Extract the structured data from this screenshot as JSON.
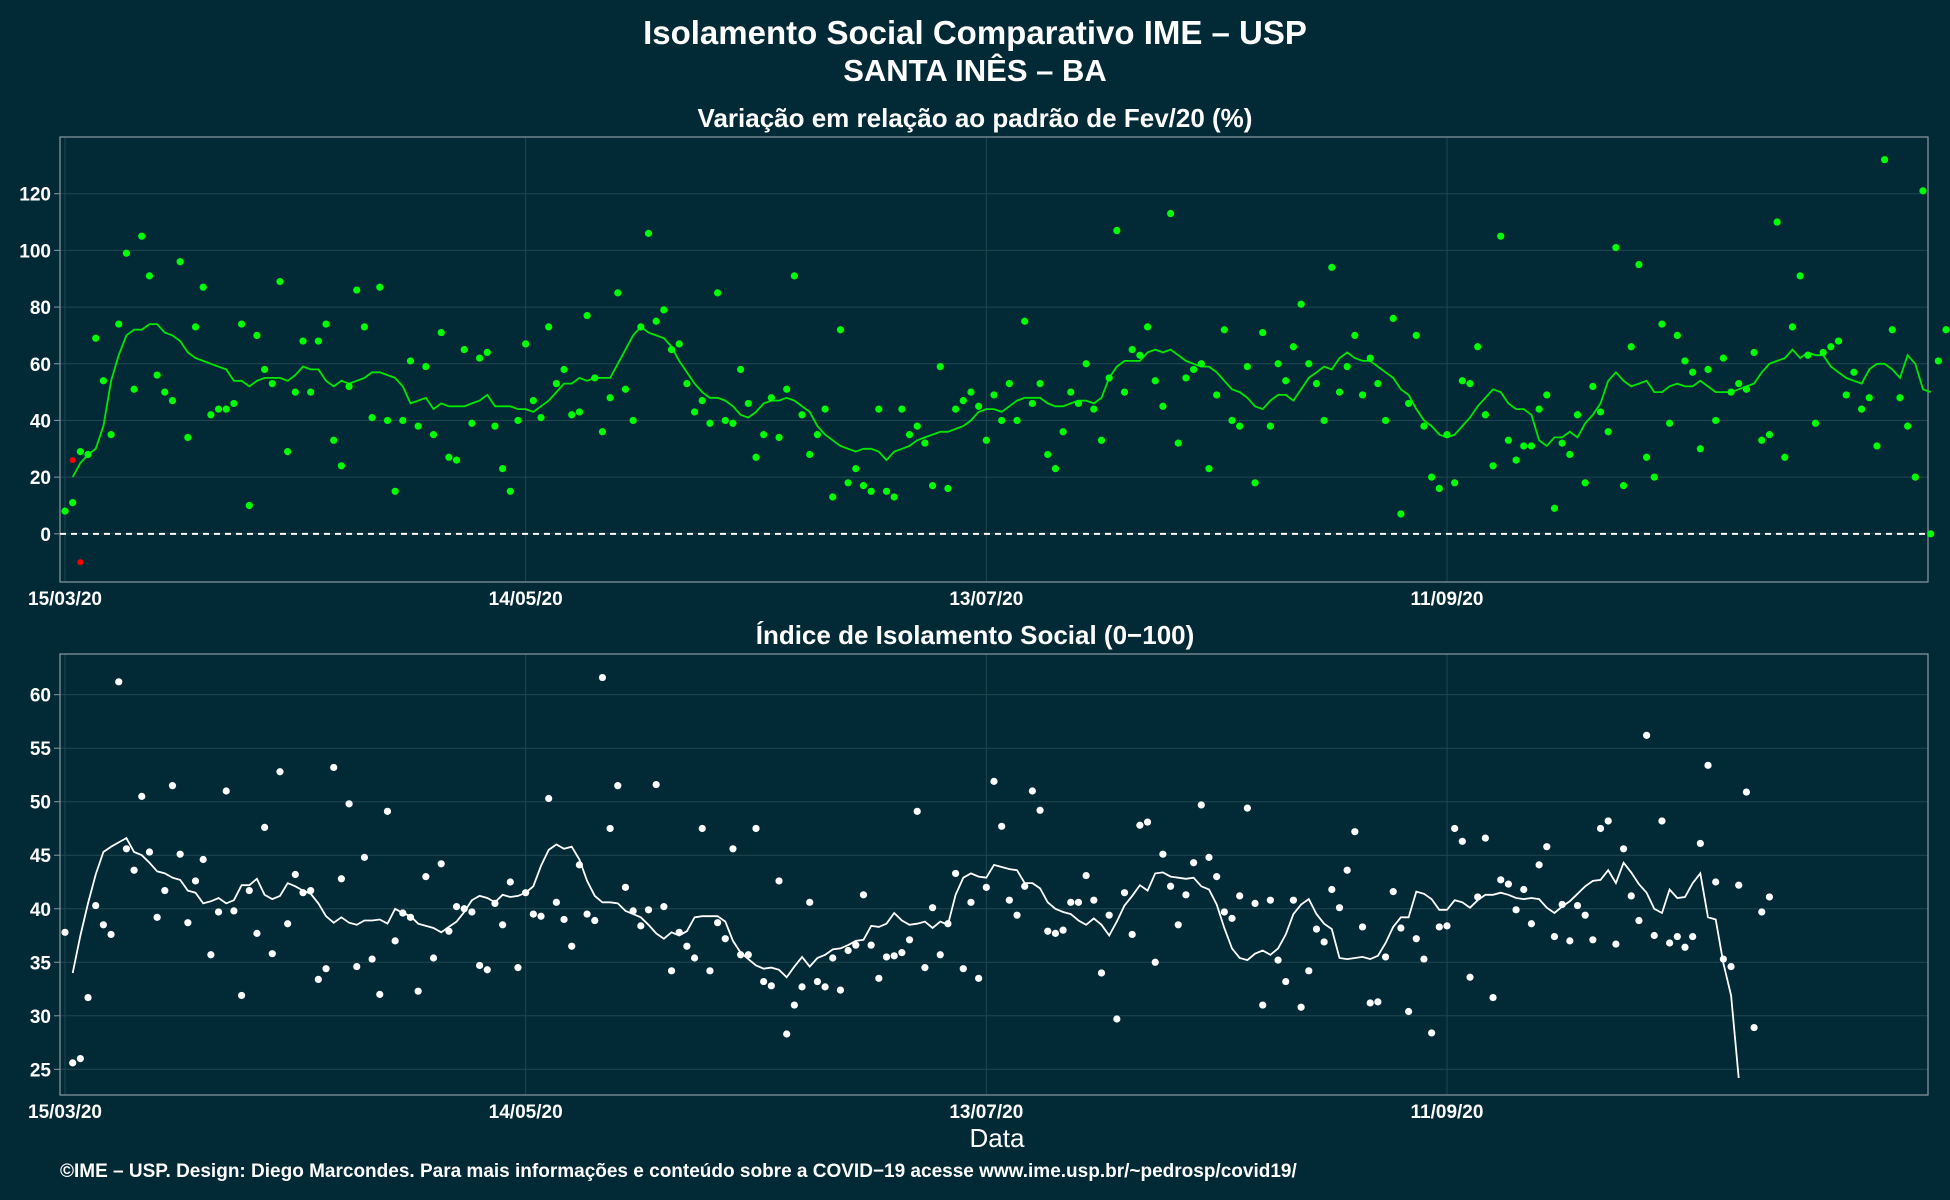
{
  "header": {
    "title": "Isolamento Social Comparativo IME – USP",
    "subtitle": "SANTA INÊS – BA"
  },
  "xlabel": "Data",
  "footer": "©IME – USP. Design: Diego Marcondes. Para mais informações e conteúdo sobre a COVID−19 acesse www.ime.usp.br/~pedrosp/covid19/",
  "colors": {
    "background": "#022a36",
    "top_points": "#00ff00",
    "top_line": "#00e600",
    "negative_points": "#ff0000",
    "bottom_points": "#ffffff",
    "bottom_line": "#ffffff",
    "zero_line": "#ffffff",
    "grid": "#1f4752",
    "frame": "#8a9aa0"
  },
  "chart_data": [
    {
      "type": "scatter",
      "title": "Variação em relação ao padrão de Fev/20 (%)",
      "xlabel": "",
      "ylabel": "",
      "x_axis": {
        "start": "15/03/20",
        "end": "12/11/20",
        "ticks": [
          "15/03/20",
          "14/05/20",
          "13/07/20",
          "11/09/20"
        ]
      },
      "ylim": [
        -17,
        140
      ],
      "yticks": [
        0,
        20,
        40,
        60,
        80,
        100,
        120
      ],
      "reference_line": 0,
      "grid": true,
      "series": [
        {
          "role": "points",
          "values": [
            8,
            11,
            29,
            28,
            69,
            54,
            35,
            74,
            99,
            51,
            105,
            91,
            56,
            50,
            47,
            96,
            34,
            73,
            87,
            42,
            44,
            44,
            46,
            74,
            10,
            70,
            58,
            53,
            89,
            29,
            50,
            68,
            50,
            68,
            74,
            33,
            24,
            52,
            86,
            73,
            41,
            87,
            40,
            15,
            40,
            61,
            38,
            59,
            35,
            71,
            27,
            26,
            65,
            39,
            62,
            64,
            38,
            23,
            15,
            40,
            67,
            47,
            41,
            73,
            53,
            58,
            42,
            43,
            77,
            55,
            36,
            48,
            85,
            51,
            40,
            73,
            106,
            75,
            79,
            65,
            67,
            53,
            43,
            47,
            39,
            85,
            40,
            39,
            58,
            46,
            27,
            35,
            48,
            34,
            51,
            91,
            42,
            28,
            35,
            44,
            13,
            72,
            18,
            23,
            17,
            15,
            44,
            15,
            13,
            44,
            35,
            38,
            32,
            17,
            59,
            16,
            44,
            47,
            50,
            45,
            33,
            49,
            40,
            53,
            40,
            75,
            46,
            53,
            28,
            23,
            36,
            50,
            46,
            60,
            44,
            33,
            55,
            107,
            50,
            65,
            63,
            73,
            54,
            45,
            113,
            32,
            55,
            58,
            60,
            23,
            49,
            72,
            40,
            38,
            59,
            18,
            71,
            38,
            60,
            54,
            66,
            81,
            60,
            53,
            40,
            94,
            50,
            59,
            70,
            49,
            62,
            53,
            40,
            76,
            7,
            46,
            70,
            38,
            20,
            16,
            35,
            18,
            54,
            53,
            66,
            42,
            24,
            105,
            33,
            26,
            31,
            31,
            44,
            49,
            9,
            32,
            28,
            42,
            18,
            52,
            43,
            36,
            101,
            17,
            66,
            95,
            27,
            20,
            74,
            39,
            70,
            61,
            57,
            30,
            58,
            40,
            62,
            50,
            53,
            51,
            64,
            33,
            35,
            110,
            27,
            73,
            91,
            63,
            39,
            64,
            66,
            68,
            49,
            57,
            44,
            48,
            31,
            132,
            72,
            48,
            38,
            20,
            121,
            0,
            61,
            72
          ]
        },
        {
          "role": "moving-average line",
          "values": [
            20,
            25,
            28,
            30,
            38,
            54,
            63,
            70,
            72,
            72,
            74,
            74,
            71,
            70,
            68,
            64,
            62,
            61,
            60,
            59,
            58,
            54,
            54,
            52,
            54,
            55,
            55,
            55,
            54,
            56,
            59,
            58,
            58,
            54,
            52,
            54,
            53,
            54,
            55,
            57,
            57,
            56,
            55,
            52,
            46,
            47,
            48,
            44,
            46,
            45,
            45,
            45,
            46,
            47,
            49,
            45,
            45,
            45,
            44,
            44,
            43,
            45,
            47,
            50,
            53,
            53,
            55,
            54,
            55,
            55,
            55,
            60,
            65,
            70,
            73,
            71,
            70,
            69,
            66,
            61,
            57,
            53,
            50,
            48,
            48,
            47,
            45,
            42,
            41,
            43,
            46,
            47,
            47,
            48,
            47,
            45,
            43,
            38,
            35,
            33,
            31,
            30,
            29,
            30,
            30,
            29,
            26,
            29,
            30,
            31,
            33,
            34,
            35,
            36,
            36,
            37,
            38,
            40,
            43,
            44,
            44,
            43,
            45,
            47,
            48,
            48,
            48,
            46,
            45,
            45,
            46,
            47,
            47,
            46,
            48,
            55,
            59,
            61,
            61,
            61,
            64,
            65,
            64,
            65,
            63,
            61,
            60,
            59,
            59,
            57,
            54,
            51,
            50,
            48,
            45,
            44,
            47,
            49,
            49,
            47,
            51,
            55,
            57,
            59,
            58,
            62,
            64,
            62,
            61,
            61,
            59,
            57,
            55,
            51,
            49,
            44,
            40,
            38,
            35,
            34,
            35,
            38,
            41,
            45,
            48,
            51,
            50,
            46,
            44,
            44,
            42,
            33,
            31,
            34,
            34,
            36,
            34,
            39,
            42,
            46,
            54,
            57,
            54,
            52,
            53,
            54,
            50,
            50,
            52,
            53,
            52,
            52,
            54,
            52,
            50,
            50,
            50,
            51,
            52,
            53,
            57,
            60,
            61,
            62,
            65,
            62,
            64,
            63,
            63,
            59,
            57,
            55,
            54,
            53,
            58,
            60,
            60,
            58,
            55,
            63,
            60,
            51,
            50
          ]
        },
        {
          "role": "negative points",
          "values": [
            26,
            -10
          ]
        }
      ]
    },
    {
      "type": "scatter",
      "title": "Índice de Isolamento Social (0−100)",
      "xlabel": "Data",
      "ylabel": "",
      "x_axis": {
        "start": "15/03/20",
        "end": "12/11/20",
        "ticks": [
          "15/03/20",
          "14/05/20",
          "13/07/20",
          "11/09/20"
        ]
      },
      "ylim": [
        22.6,
        63.8
      ],
      "yticks": [
        25,
        30,
        35,
        40,
        45,
        50,
        55,
        60
      ],
      "grid": true,
      "series": [
        {
          "role": "points",
          "values": [
            37.8,
            25.6,
            26,
            31.7,
            40.3,
            38.5,
            37.6,
            61.2,
            45.6,
            43.6,
            50.5,
            45.3,
            39.2,
            41.7,
            51.5,
            45.1,
            38.7,
            42.6,
            44.6,
            35.7,
            39.7,
            51,
            39.8,
            31.9,
            41.7,
            37.7,
            47.6,
            35.8,
            52.8,
            38.6,
            43.2,
            41.5,
            41.7,
            33.4,
            34.4,
            53.2,
            42.8,
            49.8,
            34.6,
            44.8,
            35.3,
            32,
            49.1,
            37,
            39.6,
            39.2,
            32.3,
            43,
            35.4,
            44.2,
            37.9,
            40.2,
            40,
            39.7,
            34.7,
            34.3,
            40.5,
            38.5,
            42.5,
            34.5,
            41.5,
            39.5,
            39.3,
            50.3,
            40.6,
            39,
            36.5,
            44.1,
            39.5,
            38.9,
            61.6,
            47.5,
            51.5,
            42,
            39.8,
            38.4,
            39.9,
            51.6,
            40.2,
            34.2,
            37.8,
            36.5,
            35.4,
            47.5,
            34.2,
            38.7,
            37.2,
            45.6,
            35.7,
            35.7,
            47.5,
            33.2,
            32.8,
            42.6,
            28.3,
            31,
            32.7,
            40.6,
            33.2,
            32.7,
            35.4,
            32.4,
            36.1,
            36.6,
            41.3,
            36.6,
            33.5,
            35.5,
            35.6,
            35.9,
            37.1,
            49.1,
            34.5,
            40.1,
            35.7,
            38.6,
            43.3,
            34.4,
            40.6,
            33.5,
            42,
            51.9,
            47.7,
            40.8,
            39.4,
            42.1,
            51,
            49.2,
            37.9,
            37.7,
            38,
            40.6,
            40.6,
            43.1,
            40.8,
            34,
            39.4,
            29.7,
            41.5,
            37.6,
            47.8,
            48.1,
            35,
            45.1,
            42.1,
            38.5,
            41.3,
            44.3,
            49.7,
            44.8,
            43,
            39.7,
            39.1,
            41.2,
            49.4,
            40.5,
            31,
            40.8,
            35.2,
            33.2,
            40.8,
            30.8,
            34.2,
            38.1,
            36.9,
            41.8,
            40.1,
            43.6,
            47.2,
            38.3,
            31.2,
            31.3,
            35.5,
            41.6,
            38.2,
            30.4,
            37.2,
            35.3,
            28.4,
            38.3,
            38.4,
            47.5,
            46.3,
            33.6,
            41.1,
            46.6,
            31.7,
            42.7,
            42.3,
            39.9,
            41.8,
            38.6,
            44.1,
            45.8,
            37.4,
            40.4,
            37,
            40.3,
            39.4,
            37.1,
            47.5,
            48.2,
            36.7,
            45.6,
            41.2,
            38.9,
            56.2,
            37.5,
            48.2,
            36.8,
            37.4,
            36.4,
            37.4,
            46.1,
            53.4,
            42.5,
            35.3,
            34.6,
            42.2,
            50.9,
            28.9,
            39.7,
            41.1
          ]
        },
        {
          "role": "moving-average line",
          "values": [
            34,
            37.5,
            40.5,
            43.2,
            45.3,
            45.8,
            46.2,
            46.6,
            45.3,
            45,
            44.3,
            43.5,
            43.3,
            42.9,
            42.7,
            41.7,
            41.5,
            40.5,
            40.7,
            41,
            40.5,
            40.8,
            42.2,
            42.2,
            42.8,
            41.3,
            40.9,
            41.2,
            42.4,
            42.1,
            41.7,
            41.4,
            40.5,
            39.3,
            38.7,
            39.2,
            38.7,
            38.5,
            38.9,
            38.9,
            39,
            38.6,
            40,
            39.6,
            39.3,
            38.6,
            38.4,
            38.2,
            37.8,
            38.3,
            38.8,
            39.7,
            40.8,
            41.2,
            41,
            40.6,
            41.3,
            41.1,
            41.2,
            41.5,
            42.1,
            44,
            45.5,
            46,
            45.6,
            45.8,
            44.6,
            42.6,
            41.2,
            40.6,
            40.6,
            40.5,
            39.8,
            39.5,
            39.2,
            38.5,
            37.7,
            37.2,
            37.8,
            37.5,
            37.9,
            39.2,
            39.3,
            39.3,
            39.3,
            38.8,
            37,
            35.9,
            35.3,
            34.7,
            34.4,
            34.5,
            34.3,
            33.6,
            34.6,
            35.5,
            34.6,
            35.4,
            35.7,
            36.2,
            36.3,
            36.6,
            37,
            37.1,
            38.4,
            38.3,
            38.6,
            39.6,
            38.9,
            38.5,
            38.6,
            38.8,
            38.2,
            38.8,
            38.5,
            41.3,
            42.9,
            43.3,
            43,
            42.9,
            44.1,
            43.9,
            43.7,
            43.6,
            42.4,
            42.4,
            41.9,
            40.6,
            40,
            39.7,
            39.5,
            38.9,
            38.5,
            39.1,
            38.5,
            37.5,
            38.8,
            40.3,
            41.2,
            42.2,
            41.7,
            43.3,
            43.4,
            43,
            42.9,
            42.8,
            42.9,
            42.1,
            41.8,
            40.4,
            38.2,
            36.3,
            35.4,
            35.2,
            35.8,
            36.1,
            35.7,
            36.3,
            37.6,
            39.5,
            40.4,
            40.9,
            39.5,
            38.6,
            38.1,
            35.4,
            35.3,
            35.4,
            35.5,
            35.3,
            35.6,
            36.8,
            38.3,
            39.2,
            39.2,
            41.6,
            41.4,
            40.9,
            39.9,
            39.9,
            40.8,
            40.6,
            40.1,
            40.8,
            41.3,
            41.3,
            41.5,
            41.3,
            41,
            40.9,
            41,
            40.9,
            40.1,
            39.6,
            40.2,
            40.7,
            41.4,
            42.1,
            42.6,
            42.7,
            43.6,
            42.4,
            44.3,
            43.4,
            42.3,
            41.5,
            40,
            39.6,
            41.8,
            41,
            41.1,
            42.4,
            43.3,
            39.2,
            39,
            34.9,
            31.9,
            24.2
          ]
        }
      ]
    }
  ]
}
